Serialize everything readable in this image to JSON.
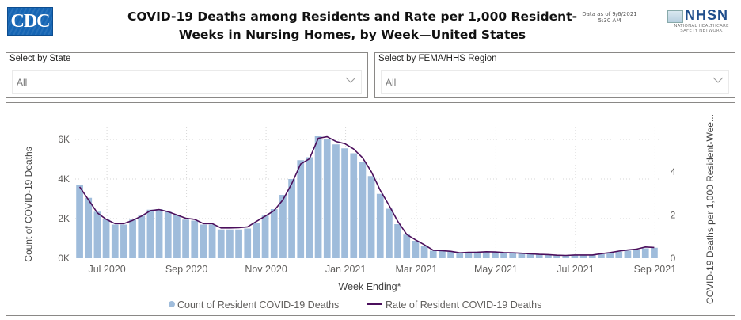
{
  "header": {
    "cdc_logo_text": "CDC",
    "title_line1": "COVID-19 Deaths among Residents and Rate per 1,000 Resident-",
    "title_line2": "Weeks in Nursing Homes, by Week—United States",
    "data_as_of_line1": "Data as of 9/6/2021",
    "data_as_of_line2": "5:30 AM",
    "nhsn_logo_text": "NHSN",
    "nhsn_sub_line1": "NATIONAL HEALTHCARE",
    "nhsn_sub_line2": "SAFETY NETWORK"
  },
  "filters": {
    "state": {
      "label": "Select by State",
      "value": "All"
    },
    "region": {
      "label": "Select by FEMA/HHS Region",
      "value": "All"
    }
  },
  "colors": {
    "bar": "#9fbcdb",
    "line": "#4b0f5c",
    "grid": "#d6d6d6",
    "cdc_blue": "#1565b4"
  },
  "chart_data": {
    "type": "bar",
    "combo": "bar+line",
    "title": "COVID-19 Deaths among Residents and Rate per 1,000 Resident-Weeks in Nursing Homes, by Week—United States",
    "xlabel": "Week Ending*",
    "ylabel": "Count of COVID-19 Deaths",
    "y2label": "COVID-19 Deaths per 1,000 Resident-Wee...",
    "ylim": [
      0,
      6600
    ],
    "y2lim": [
      0,
      6.0
    ],
    "yticks": [
      0,
      2000,
      4000,
      6000
    ],
    "ytick_labels": [
      "0K",
      "2K",
      "4K",
      "6K"
    ],
    "y2ticks": [
      0,
      2,
      4
    ],
    "y2tick_labels": [
      "0",
      "2",
      "4"
    ],
    "xtick_labels": [
      "Jul 2020",
      "Sep 2020",
      "Nov 2020",
      "Jan 2021",
      "Mar 2021",
      "May 2021",
      "Jul 2021",
      "Sep 2021"
    ],
    "xtick_bar_index": [
      4,
      13,
      22,
      31,
      39,
      48,
      57,
      66
    ],
    "grid": true,
    "legend_position": "bottom",
    "series": [
      {
        "name": "Count of Resident COVID-19 Deaths",
        "type": "bar",
        "axis": "left",
        "values": [
          3720,
          3050,
          2350,
          2000,
          1700,
          1700,
          1950,
          2150,
          2450,
          2480,
          2350,
          2200,
          1950,
          1900,
          1700,
          1700,
          1450,
          1450,
          1450,
          1500,
          1800,
          2150,
          2480,
          3200,
          4000,
          4950,
          5100,
          6160,
          6000,
          5750,
          5550,
          5300,
          4850,
          4150,
          3250,
          2500,
          1720,
          1190,
          880,
          640,
          380,
          370,
          330,
          270,
          300,
          330,
          320,
          300,
          260,
          250,
          230,
          210,
          190,
          180,
          150,
          140,
          150,
          160,
          160,
          210,
          260,
          330,
          380,
          410,
          500,
          530
        ]
      },
      {
        "name": "Rate of Resident COVID-19 Deaths",
        "type": "line",
        "axis": "right",
        "values": [
          3.3,
          2.7,
          2.1,
          1.8,
          1.6,
          1.6,
          1.75,
          1.95,
          2.2,
          2.25,
          2.15,
          2.0,
          1.85,
          1.8,
          1.6,
          1.6,
          1.4,
          1.4,
          1.41,
          1.45,
          1.7,
          1.95,
          2.2,
          2.7,
          3.45,
          4.35,
          4.6,
          5.55,
          5.62,
          5.4,
          5.3,
          5.05,
          4.65,
          4.0,
          3.15,
          2.45,
          1.7,
          1.1,
          0.85,
          0.62,
          0.37,
          0.35,
          0.32,
          0.25,
          0.27,
          0.28,
          0.3,
          0.29,
          0.26,
          0.25,
          0.23,
          0.2,
          0.18,
          0.17,
          0.14,
          0.13,
          0.15,
          0.15,
          0.15,
          0.21,
          0.26,
          0.33,
          0.38,
          0.42,
          0.52,
          0.5
        ]
      }
    ]
  }
}
